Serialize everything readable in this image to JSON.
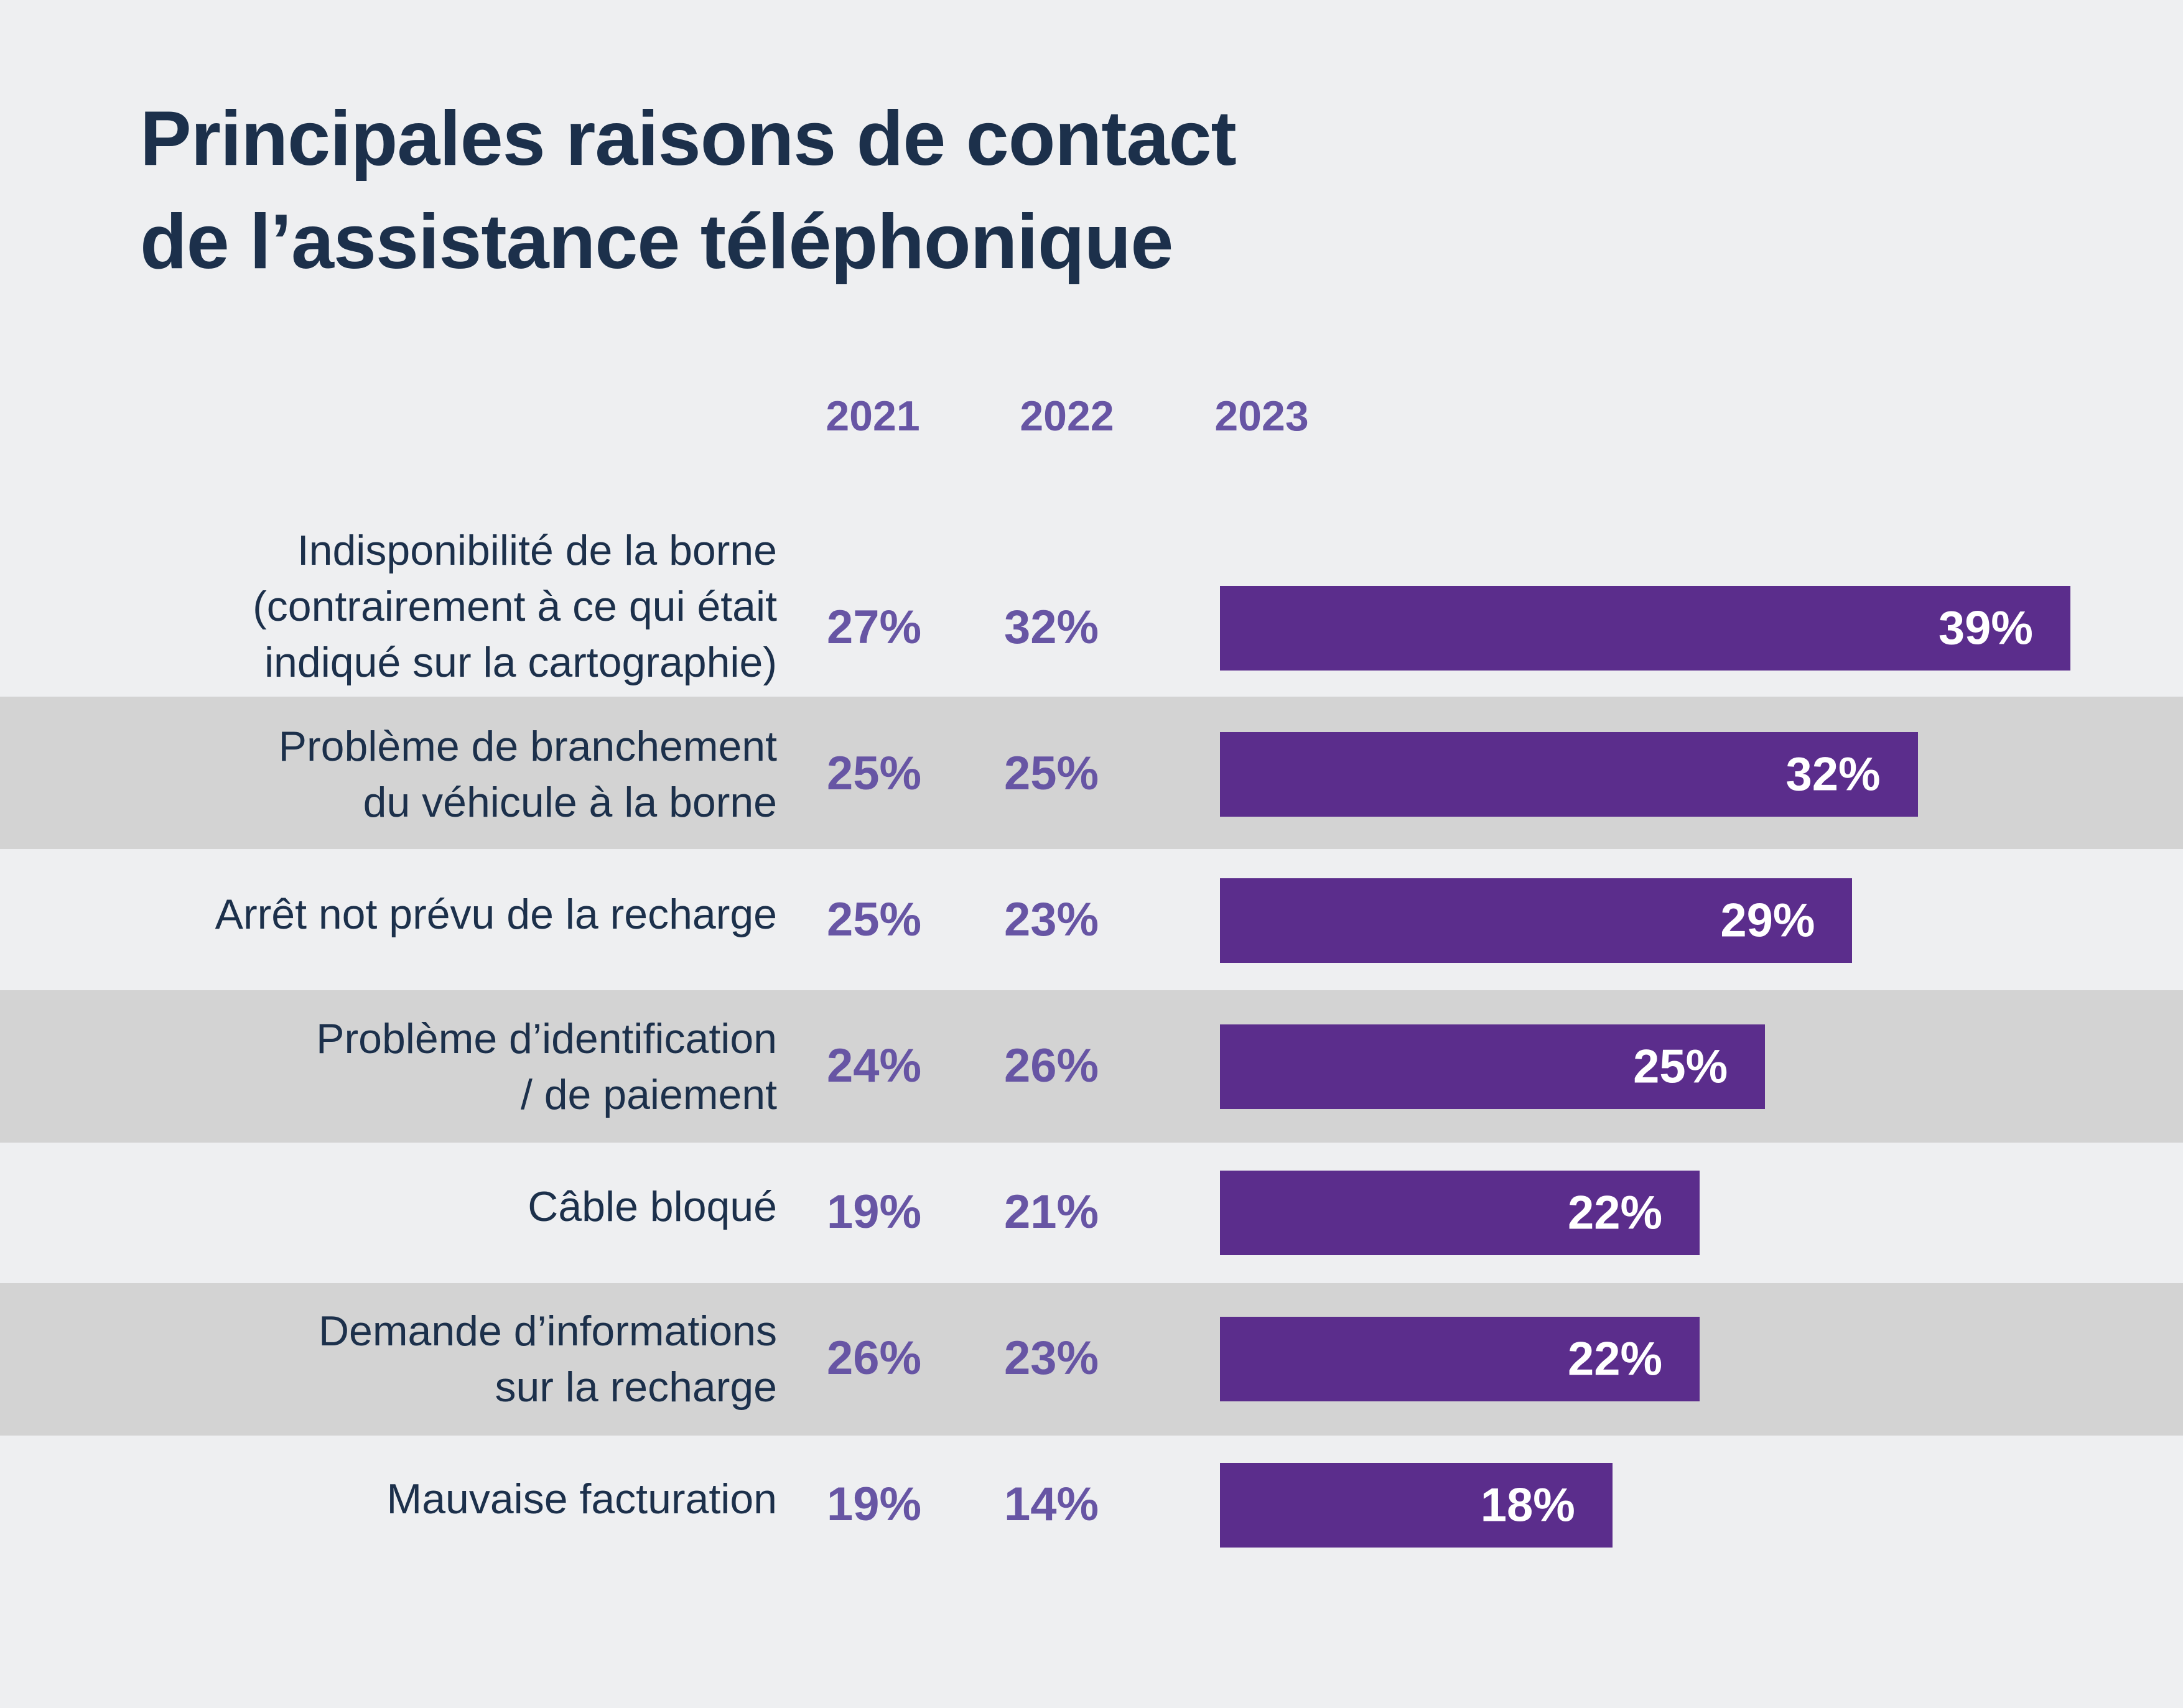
{
  "title": {
    "line1": "Principales raisons de contact",
    "line2": "de l’assistance téléphonique"
  },
  "colors": {
    "title": "#1c304b",
    "year_text": "#6755a4",
    "bar": "#5b2d8c",
    "band": "#d3d3d3",
    "background": "#eeeff1"
  },
  "chart_data": {
    "type": "bar",
    "orientation": "horizontal",
    "title": "Principales raisons de contact de l’assistance téléphonique",
    "unit": "%",
    "years": [
      "2021",
      "2022",
      "2023"
    ],
    "categories": [
      "Indisponibilité de la borne (contrairement à ce qui était indiqué sur la cartographie)",
      "Problème de branchement du véhicule à la borne",
      "Arrêt not prévu de la recharge",
      "Problème d’identification / de paiement",
      "Câble bloqué",
      "Demande d’informations sur la recharge",
      "Mauvaise facturation"
    ],
    "category_lines": [
      [
        "Indisponibilité de la borne",
        "(contrairement à ce qui était",
        "indiqué sur la cartographie)"
      ],
      [
        "Problème de branchement",
        "du véhicule à la borne"
      ],
      [
        "Arrêt not prévu de la recharge"
      ],
      [
        "Problème d’identification",
        "/ de paiement"
      ],
      [
        "Câble bloqué"
      ],
      [
        "Demande d’informations",
        "sur la recharge"
      ],
      [
        "Mauvaise facturation"
      ]
    ],
    "series": [
      {
        "name": "2021",
        "values": [
          27,
          25,
          25,
          24,
          19,
          26,
          19
        ],
        "display": "text"
      },
      {
        "name": "2022",
        "values": [
          32,
          25,
          23,
          26,
          21,
          23,
          14
        ],
        "display": "text"
      },
      {
        "name": "2023",
        "values": [
          39,
          32,
          29,
          25,
          22,
          22,
          18
        ],
        "display": "bar"
      }
    ],
    "value_labels": {
      "2021": [
        "27%",
        "25%",
        "25%",
        "24%",
        "19%",
        "26%",
        "19%"
      ],
      "2022": [
        "32%",
        "25%",
        "23%",
        "26%",
        "21%",
        "23%",
        "14%"
      ],
      "2023": [
        "39%",
        "32%",
        "29%",
        "25%",
        "22%",
        "22%",
        "18%"
      ]
    },
    "grid": false,
    "legend": "none"
  }
}
